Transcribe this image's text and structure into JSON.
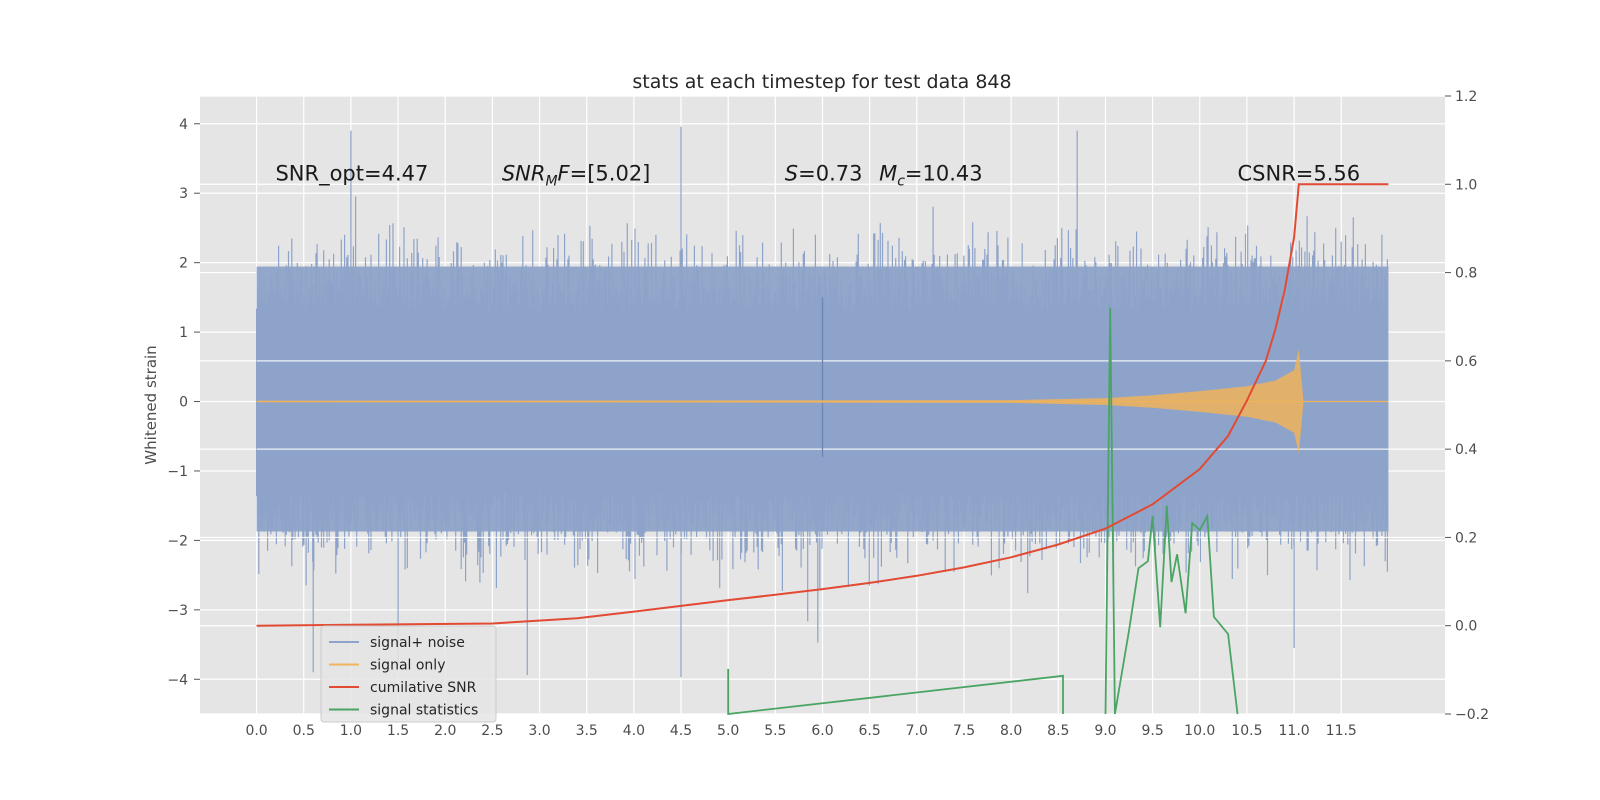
{
  "chart_data": {
    "type": "line",
    "title": "stats at each timestep for test data 848",
    "ylabel": "Whitened strain",
    "xlim": [
      -0.6,
      12.6
    ],
    "ylim": [
      -4.5,
      4.4
    ],
    "y2lim": [
      -0.2,
      1.2
    ],
    "x_ticks": [
      "0.0",
      "0.5",
      "1.0",
      "1.5",
      "2.0",
      "2.5",
      "3.0",
      "3.5",
      "4.0",
      "4.5",
      "5.0",
      "5.5",
      "6.0",
      "6.5",
      "7.0",
      "7.5",
      "8.0",
      "8.5",
      "9.0",
      "9.5",
      "10.0",
      "10.5",
      "11.0",
      "11.5"
    ],
    "y_ticks": [
      "−4",
      "−3",
      "−2",
      "−1",
      "0",
      "1",
      "2",
      "3",
      "4"
    ],
    "y_tick_values": [
      -4,
      -3,
      -2,
      -1,
      0,
      1,
      2,
      3,
      4
    ],
    "y2_ticks": [
      "−0.2",
      "0.0",
      "0.2",
      "0.4",
      "0.6",
      "0.8",
      "1.0",
      "1.2"
    ],
    "y2_tick_values": [
      -0.2,
      0.0,
      0.2,
      0.4,
      0.6,
      0.8,
      1.0,
      1.2
    ],
    "grid": true,
    "annotations": [
      {
        "text": "SNR_opt=4.47",
        "x": 0.2,
        "y": 3.18
      },
      {
        "text": "SNR",
        "sub": "M",
        "tail": "F=[5.02]",
        "italic": true,
        "x": 2.6,
        "y": 3.18
      },
      {
        "text": "S=0.73",
        "x": 5.6,
        "y": 3.18
      },
      {
        "text": "M",
        "sub": "c",
        "tail": "=10.43",
        "x": 6.6,
        "y": 3.18
      },
      {
        "text": "CSNR=5.56",
        "x": 10.4,
        "y": 3.18
      }
    ],
    "legend": {
      "position": "lower-left",
      "entries": [
        {
          "label": "signal+ noise",
          "color": "#8ea3c9"
        },
        {
          "label": "signal only",
          "color": "#f0b35b"
        },
        {
          "label": "cumilative SNR",
          "color": "#e24a33"
        },
        {
          "label": "signal statistics",
          "color": "#4aa564"
        }
      ]
    },
    "series": [
      {
        "name": "signal+ noise",
        "axis": "left",
        "color": "#8ea3c9",
        "x_range": [
          0.0,
          12.0
        ],
        "envelope_min": -2.6,
        "envelope_max": 2.7,
        "extremes": [
          {
            "x": 4.5,
            "y": 3.96
          },
          {
            "x": 4.5,
            "y": -3.97
          },
          {
            "x": 2.87,
            "y": -3.94
          },
          {
            "x": 1.5,
            "y": -3.8
          },
          {
            "x": 0.6,
            "y": -3.9
          },
          {
            "x": 11.0,
            "y": -3.55
          },
          {
            "x": 5.95,
            "y": -3.47
          },
          {
            "x": 1.0,
            "y": 3.9
          },
          {
            "x": 8.7,
            "y": 3.9
          }
        ]
      },
      {
        "name": "signal only",
        "axis": "left",
        "color": "#f0b35b",
        "x": [
          0,
          8.0,
          9.0,
          9.5,
          10.0,
          10.5,
          10.8,
          11.0,
          11.05,
          11.1,
          12.0
        ],
        "amplitude": [
          0.01,
          0.02,
          0.05,
          0.09,
          0.15,
          0.22,
          0.3,
          0.45,
          0.75,
          0.0,
          0.0
        ]
      },
      {
        "name": "cumilative SNR",
        "axis": "right",
        "color": "#e24a33",
        "x": [
          0.0,
          1.0,
          2.5,
          3.4,
          4.0,
          4.5,
          5.0,
          5.5,
          6.0,
          6.5,
          7.0,
          7.5,
          8.0,
          8.5,
          9.0,
          9.5,
          10.0,
          10.3,
          10.5,
          10.7,
          10.8,
          10.9,
          11.0,
          11.05,
          11.1,
          12.0
        ],
        "y": [
          0.0,
          0.002,
          0.005,
          0.017,
          0.032,
          0.045,
          0.058,
          0.07,
          0.083,
          0.097,
          0.113,
          0.132,
          0.155,
          0.184,
          0.22,
          0.275,
          0.355,
          0.43,
          0.51,
          0.6,
          0.67,
          0.76,
          0.88,
          1.0,
          1.0,
          1.0
        ]
      },
      {
        "name": "signal statistics",
        "axis": "left",
        "color": "#4aa564",
        "x": [
          5.0,
          5.0,
          5.0,
          8.55,
          8.55,
          9.0,
          9.05,
          9.1,
          9.25,
          9.35,
          9.45,
          9.5,
          9.58,
          9.65,
          9.7,
          9.76,
          9.85,
          9.92,
          10.0,
          10.08,
          10.15,
          10.3,
          10.4
        ],
        "y": [
          -4.6,
          -3.85,
          -4.6,
          -3.95,
          -4.6,
          -4.6,
          1.35,
          -4.6,
          -3.3,
          -2.4,
          -2.3,
          -1.65,
          -3.25,
          -1.5,
          -2.6,
          -2.2,
          -3.05,
          -1.75,
          -1.85,
          -1.65,
          -3.1,
          -3.35,
          -4.6
        ]
      }
    ]
  }
}
